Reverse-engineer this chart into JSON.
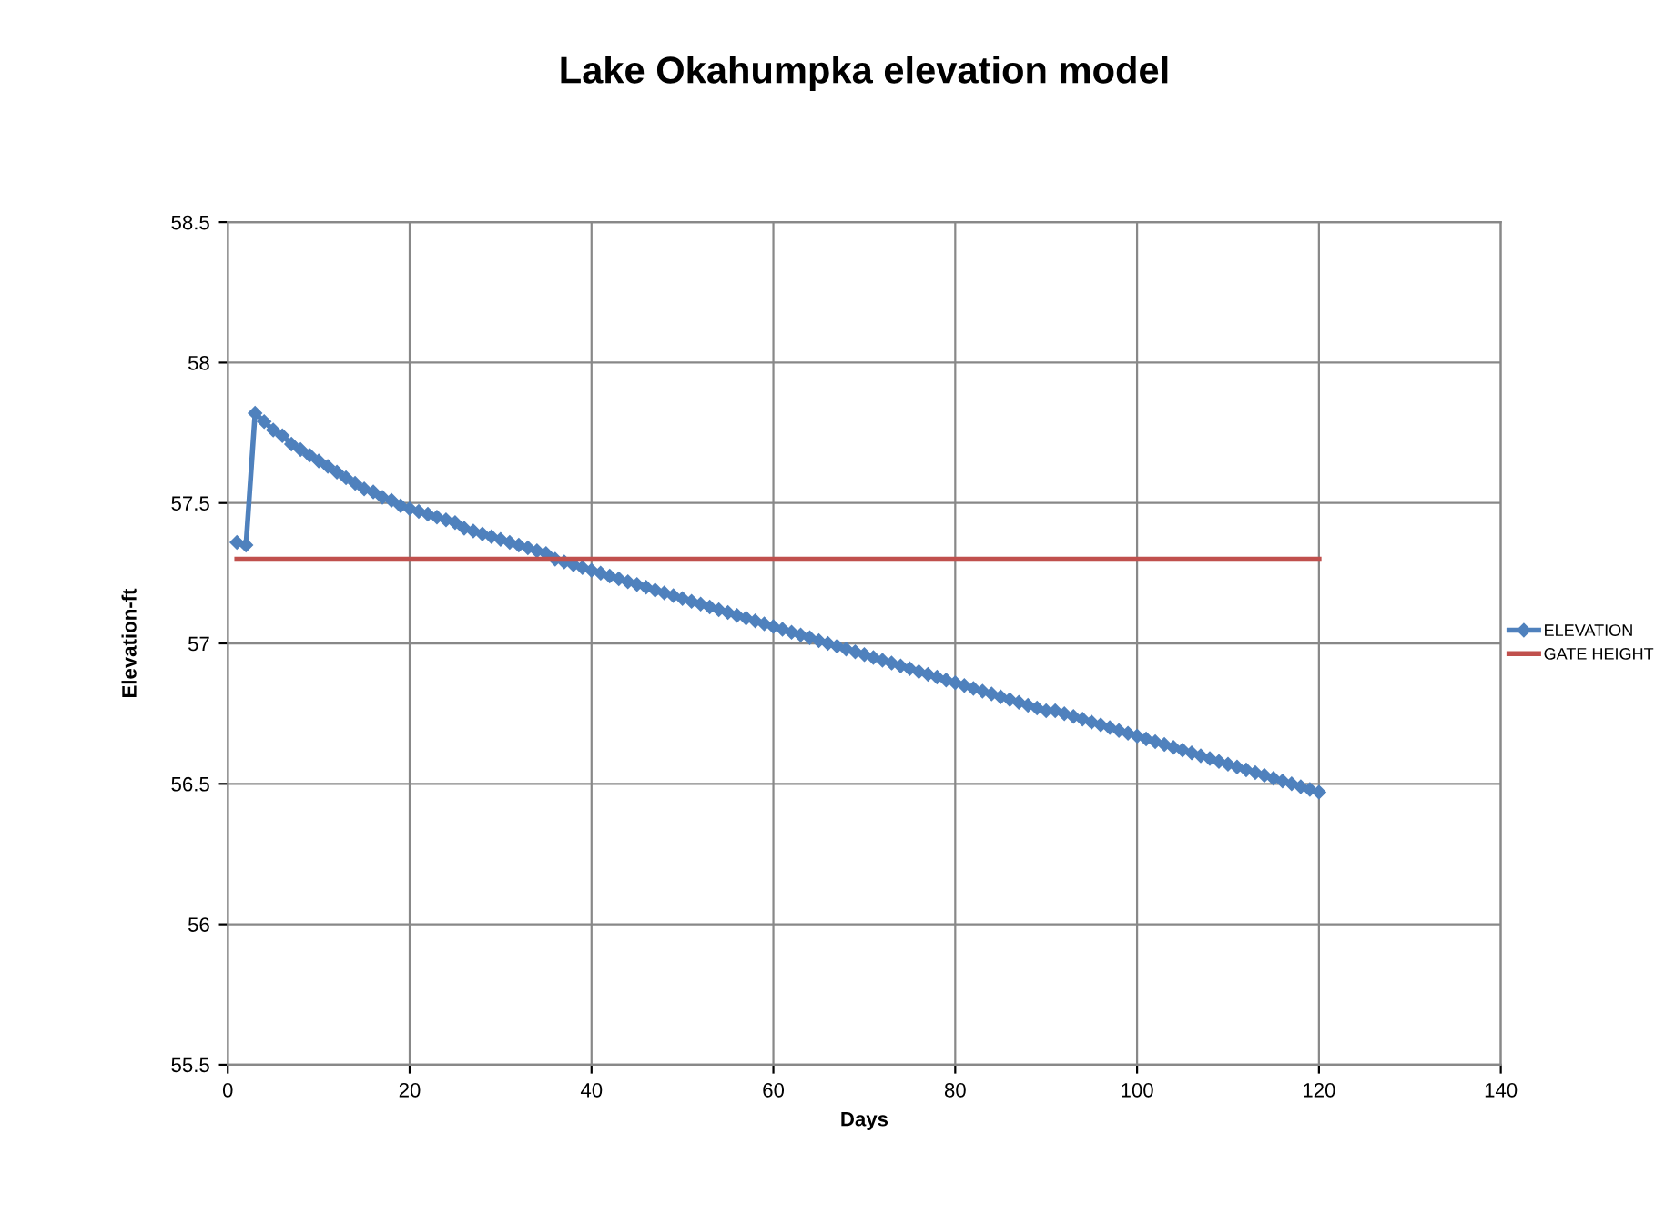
{
  "chart_data": {
    "type": "line",
    "title": "Lake Okahumpka elevation model",
    "xlabel": "Days",
    "ylabel": "Elevation-ft",
    "xlim": [
      0,
      140
    ],
    "xticks": [
      0,
      20,
      40,
      60,
      80,
      100,
      120,
      140
    ],
    "ylim": [
      55.5,
      58.5
    ],
    "yticks": [
      55.5,
      56,
      56.5,
      57,
      57.5,
      58,
      58.5
    ],
    "grid": true,
    "legend": "right",
    "series": [
      {
        "name": "ELEVATION",
        "color": "#4f81bd",
        "marker": "diamond",
        "x": [
          1,
          2,
          3,
          4,
          5,
          6,
          7,
          8,
          9,
          10,
          11,
          12,
          13,
          14,
          15,
          16,
          17,
          18,
          19,
          20,
          21,
          22,
          23,
          24,
          25,
          26,
          27,
          28,
          29,
          30,
          31,
          32,
          33,
          34,
          35,
          36,
          37,
          38,
          39,
          40,
          41,
          42,
          43,
          44,
          45,
          46,
          47,
          48,
          49,
          50,
          51,
          52,
          53,
          54,
          55,
          56,
          57,
          58,
          59,
          60,
          61,
          62,
          63,
          64,
          65,
          66,
          67,
          68,
          69,
          70,
          71,
          72,
          73,
          74,
          75,
          76,
          77,
          78,
          79,
          80,
          81,
          82,
          83,
          84,
          85,
          86,
          87,
          88,
          89,
          90,
          91,
          92,
          93,
          94,
          95,
          96,
          97,
          98,
          99,
          100,
          101,
          102,
          103,
          104,
          105,
          106,
          107,
          108,
          109,
          110,
          111,
          112,
          113,
          114,
          115,
          116,
          117,
          118,
          119,
          120
        ],
        "values": [
          57.36,
          57.35,
          57.82,
          57.79,
          57.76,
          57.74,
          57.71,
          57.69,
          57.67,
          57.65,
          57.63,
          57.61,
          57.59,
          57.57,
          57.55,
          57.54,
          57.52,
          57.51,
          57.49,
          57.48,
          57.47,
          57.46,
          57.45,
          57.44,
          57.43,
          57.41,
          57.4,
          57.39,
          57.38,
          57.37,
          57.36,
          57.35,
          57.34,
          57.33,
          57.32,
          57.3,
          57.29,
          57.28,
          57.27,
          57.26,
          57.25,
          57.24,
          57.23,
          57.22,
          57.21,
          57.2,
          57.19,
          57.18,
          57.17,
          57.16,
          57.15,
          57.14,
          57.13,
          57.12,
          57.11,
          57.1,
          57.09,
          57.08,
          57.07,
          57.06,
          57.05,
          57.04,
          57.03,
          57.02,
          57.01,
          57.0,
          56.99,
          56.98,
          56.97,
          56.96,
          56.95,
          56.94,
          56.93,
          56.92,
          56.91,
          56.9,
          56.89,
          56.88,
          56.87,
          56.86,
          56.85,
          56.84,
          56.83,
          56.82,
          56.81,
          56.8,
          56.79,
          56.78,
          56.77,
          56.76,
          56.76,
          56.75,
          56.74,
          56.73,
          56.72,
          56.71,
          56.7,
          56.69,
          56.68,
          56.67,
          56.66,
          56.65,
          56.64,
          56.63,
          56.62,
          56.61,
          56.6,
          56.59,
          56.58,
          56.57,
          56.56,
          56.55,
          56.54,
          56.53,
          56.52,
          56.51,
          56.5,
          56.49,
          56.48,
          56.47
        ]
      },
      {
        "name": "GATE HEIGHT",
        "color": "#c0504d",
        "marker": "none",
        "x": [
          1,
          120
        ],
        "values": [
          57.3,
          57.3
        ]
      }
    ]
  }
}
